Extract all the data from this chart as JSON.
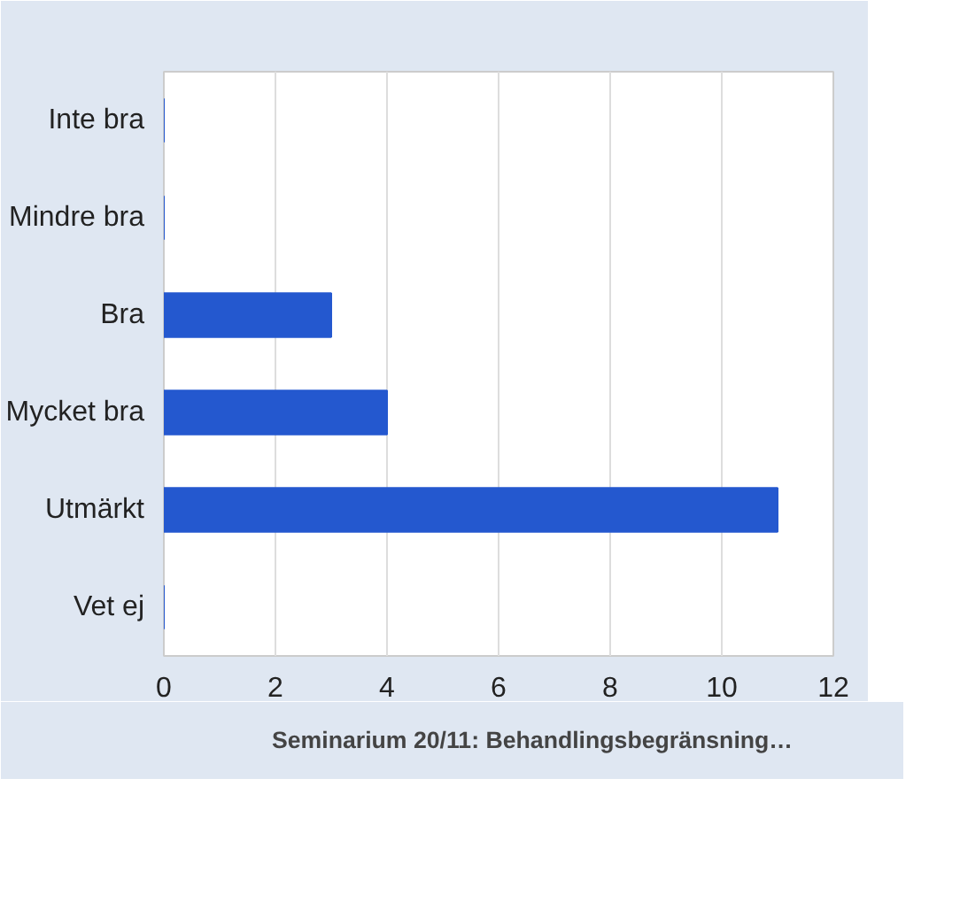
{
  "chart_data": {
    "type": "bar",
    "orientation": "horizontal",
    "categories": [
      "Inte bra",
      "Mindre bra",
      "Bra",
      "Mycket bra",
      "Utmärkt",
      "Vet ej"
    ],
    "series": [
      {
        "name": "Seminarium 20/11: Behandlingsbegränsning…",
        "color": "#2458cf",
        "values": [
          0,
          0,
          3,
          4,
          11,
          0
        ]
      }
    ],
    "xlim": [
      0,
      12
    ],
    "xticks": [
      0,
      2,
      4,
      6,
      8,
      10,
      12
    ],
    "grid": "x",
    "legend": "bottom"
  }
}
